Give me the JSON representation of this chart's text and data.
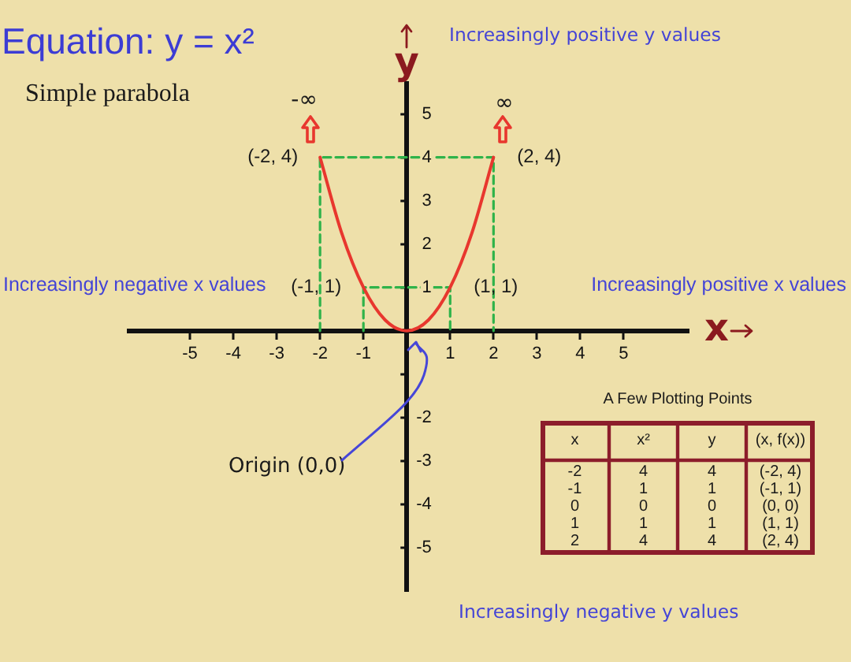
{
  "chart_data": {
    "type": "line",
    "title": "Equation: y = x²",
    "subtitle": "Simple parabola",
    "xlabel": "x",
    "ylabel": "y",
    "xlim": [
      -6.4,
      6.5
    ],
    "ylim": [
      -6,
      5.7
    ],
    "xticks": [
      -5,
      -4,
      -3,
      -2,
      -1,
      1,
      2,
      3,
      4,
      5
    ],
    "yticks": [
      -5,
      -4,
      -3,
      -2,
      {
        "value": -1,
        "label": null
      },
      1,
      2,
      3,
      4,
      5
    ],
    "marker": "none",
    "line_style": "solid",
    "series": [
      {
        "color": "#e8372e",
        "x": [
          -2,
          -1.5,
          -1,
          -0.5,
          0,
          0.5,
          1,
          1.5,
          2
        ],
        "values": [
          4,
          2.25,
          1,
          0.25,
          0,
          0.25,
          1,
          2.25,
          4
        ]
      },
      {
        "color": "#2fb34a",
        "line_style": "dashed",
        "x": [
          -2,
          -2,
          2,
          2
        ],
        "values": [
          0,
          4,
          4,
          0
        ]
      },
      {
        "color": "#2fb34a",
        "line_style": "dashed",
        "x": [
          -1,
          -1,
          1,
          1
        ],
        "values": [
          0,
          1,
          1,
          0
        ]
      }
    ],
    "annotations": [
      {
        "text": "(-2, 4)",
        "x": -2,
        "y": 4
      },
      {
        "text": "(2, 4)",
        "x": 2,
        "y": 4
      },
      {
        "text": "(-1, 1)",
        "x": -1,
        "y": 1
      },
      {
        "text": "(1, 1)",
        "x": 1,
        "y": 1
      },
      "Increasingly positive y values",
      "Increasingly negative x values",
      "Increasingly positive x values",
      "Increasingly negative y values",
      "-∞",
      "∞",
      "Origin (0,0)",
      "A Few Plotting Points",
      "x",
      "x²",
      "y",
      "(x, f(x))",
      "-2",
      "4",
      "4",
      "(-2, 4)",
      "-1",
      "1",
      "1",
      "(-1, 1)",
      "0",
      "0",
      "0",
      "(0, 0)",
      "1",
      "1",
      "1",
      "(1, 1)",
      "2",
      "4",
      "4",
      "(2, 4)"
    ]
  }
}
